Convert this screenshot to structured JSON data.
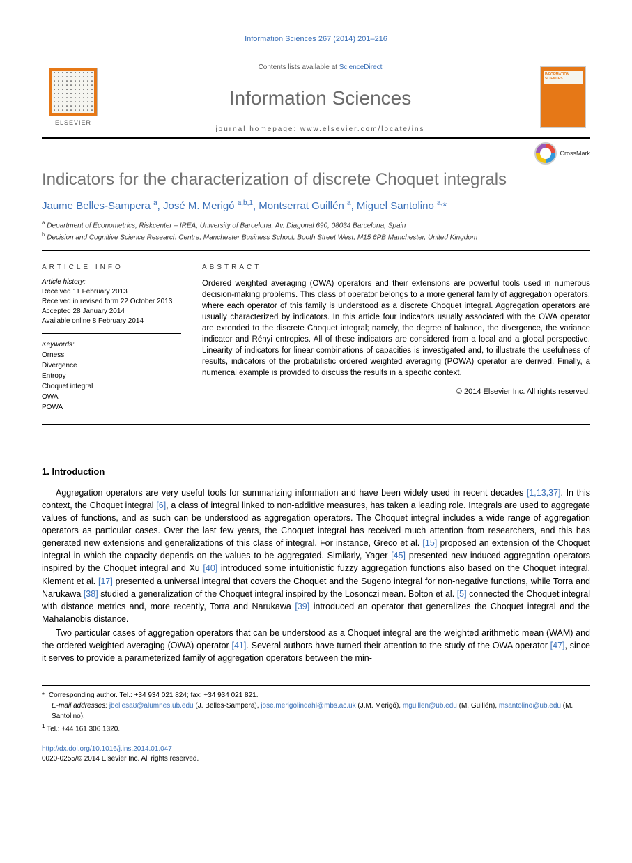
{
  "citation": "Information Sciences 267 (2014) 201–216",
  "header": {
    "contents_prefix": "Contents lists available at ",
    "contents_link": "ScienceDirect",
    "journal": "Information Sciences",
    "homepage_label": "journal homepage: www.elsevier.com/locate/ins",
    "publisher": "ELSEVIER",
    "cover_label": "INFORMATION SCIENCES"
  },
  "article": {
    "title": "Indicators for the characterization of discrete Choquet integrals",
    "crossmark": "CrossMark"
  },
  "authors_html": "Jaume Belles-Sampera <sup>a</sup>, José M. Merigó <sup>a,b,1</sup>, Montserrat Guillén <sup>a</sup>, Miguel Santolino <sup>a,</sup><span class='star'>*</span>",
  "affiliations": {
    "a": "Department of Econometrics, Riskcenter – IREA, University of Barcelona, Av. Diagonal 690, 08034 Barcelona, Spain",
    "b": "Decision and Cognitive Science Research Centre, Manchester Business School, Booth Street West, M15 6PB Manchester, United Kingdom"
  },
  "info": {
    "heading": "ARTICLE INFO",
    "history_label": "Article history:",
    "history": [
      "Received 11 February 2013",
      "Received in revised form 22 October 2013",
      "Accepted 28 January 2014",
      "Available online 8 February 2014"
    ],
    "keywords_label": "Keywords:",
    "keywords": [
      "Orness",
      "Divergence",
      "Entropy",
      "Choquet integral",
      "OWA",
      "POWA"
    ]
  },
  "abstract": {
    "heading": "ABSTRACT",
    "text": "Ordered weighted averaging (OWA) operators and their extensions are powerful tools used in numerous decision-making problems. This class of operator belongs to a more general family of aggregation operators, where each operator of this family is understood as a discrete Choquet integral. Aggregation operators are usually characterized by indicators. In this article four indicators usually associated with the OWA operator are extended to the discrete Choquet integral; namely, the degree of balance, the divergence, the variance indicator and Rényi entropies. All of these indicators are considered from a local and a global perspective. Linearity of indicators for linear combinations of capacities is investigated and, to illustrate the usefulness of results, indicators of the probabilistic ordered weighted averaging (POWA) operator are derived. Finally, a numerical example is provided to discuss the results in a specific context.",
    "copyright": "© 2014 Elsevier Inc. All rights reserved."
  },
  "section1": {
    "heading": "1. Introduction",
    "p1_parts": [
      "Aggregation operators are very useful tools for summarizing information and have been widely used in recent decades ",
      "[1,13,37]",
      ". In this context, the Choquet integral ",
      "[6]",
      ", a class of integral linked to non-additive measures, has taken a leading role. Integrals are used to aggregate values of functions, and as such can be understood as aggregation operators. The Choquet integral includes a wide range of aggregation operators as particular cases. Over the last few years, the Choquet integral has received much attention from researchers, and this has generated new extensions and generalizations of this class of integral. For instance, Greco et al. ",
      "[15]",
      " proposed an extension of the Choquet integral in which the capacity depends on the values to be aggregated. Similarly, Yager ",
      "[45]",
      " presented new induced aggregation operators inspired by the Choquet integral and Xu ",
      "[40]",
      " introduced some intuitionistic fuzzy aggregation functions also based on the Choquet integral. Klement et al. ",
      "[17]",
      " presented a universal integral that covers the Choquet and the Sugeno integral for non-negative functions, while Torra and Narukawa ",
      "[38]",
      " studied a generalization of the Choquet integral inspired by the Losonczi mean. Bolton et al. ",
      "[5]",
      " connected the Choquet integral with distance metrics and, more recently, Torra and Narukawa ",
      "[39]",
      " introduced an operator that generalizes the Choquet integral and the Mahalanobis distance."
    ],
    "p2_parts": [
      "Two particular cases of aggregation operators that can be understood as a Choquet integral are the weighted arithmetic mean (WAM) and the ordered weighted averaging (OWA) operator ",
      "[41]",
      ". Several authors have turned their attention to the study of the OWA operator ",
      "[47]",
      ", since it serves to provide a parameterized family of aggregation operators between the min-"
    ]
  },
  "footer": {
    "corresponding": "Corresponding author. Tel.: +34 934 021 824; fax: +34 934 021 821.",
    "email_label": "E-mail addresses:",
    "emails": [
      {
        "addr": "jbellesa8@alumnes.ub.edu",
        "who": "(J. Belles-Sampera)"
      },
      {
        "addr": "jose.merigolindahl@mbs.ac.uk",
        "who": "(J.M. Merigó)"
      },
      {
        "addr": "mguillen@ub.edu",
        "who": "(M. Guillén)"
      },
      {
        "addr": "msantolino@ub.edu",
        "who": "(M. Santolino)."
      }
    ],
    "note1": "Tel.: +44 161 306 1320.",
    "doi": "http://dx.doi.org/10.1016/j.ins.2014.01.047",
    "issn_copyright": "0020-0255/© 2014 Elsevier Inc. All rights reserved."
  }
}
